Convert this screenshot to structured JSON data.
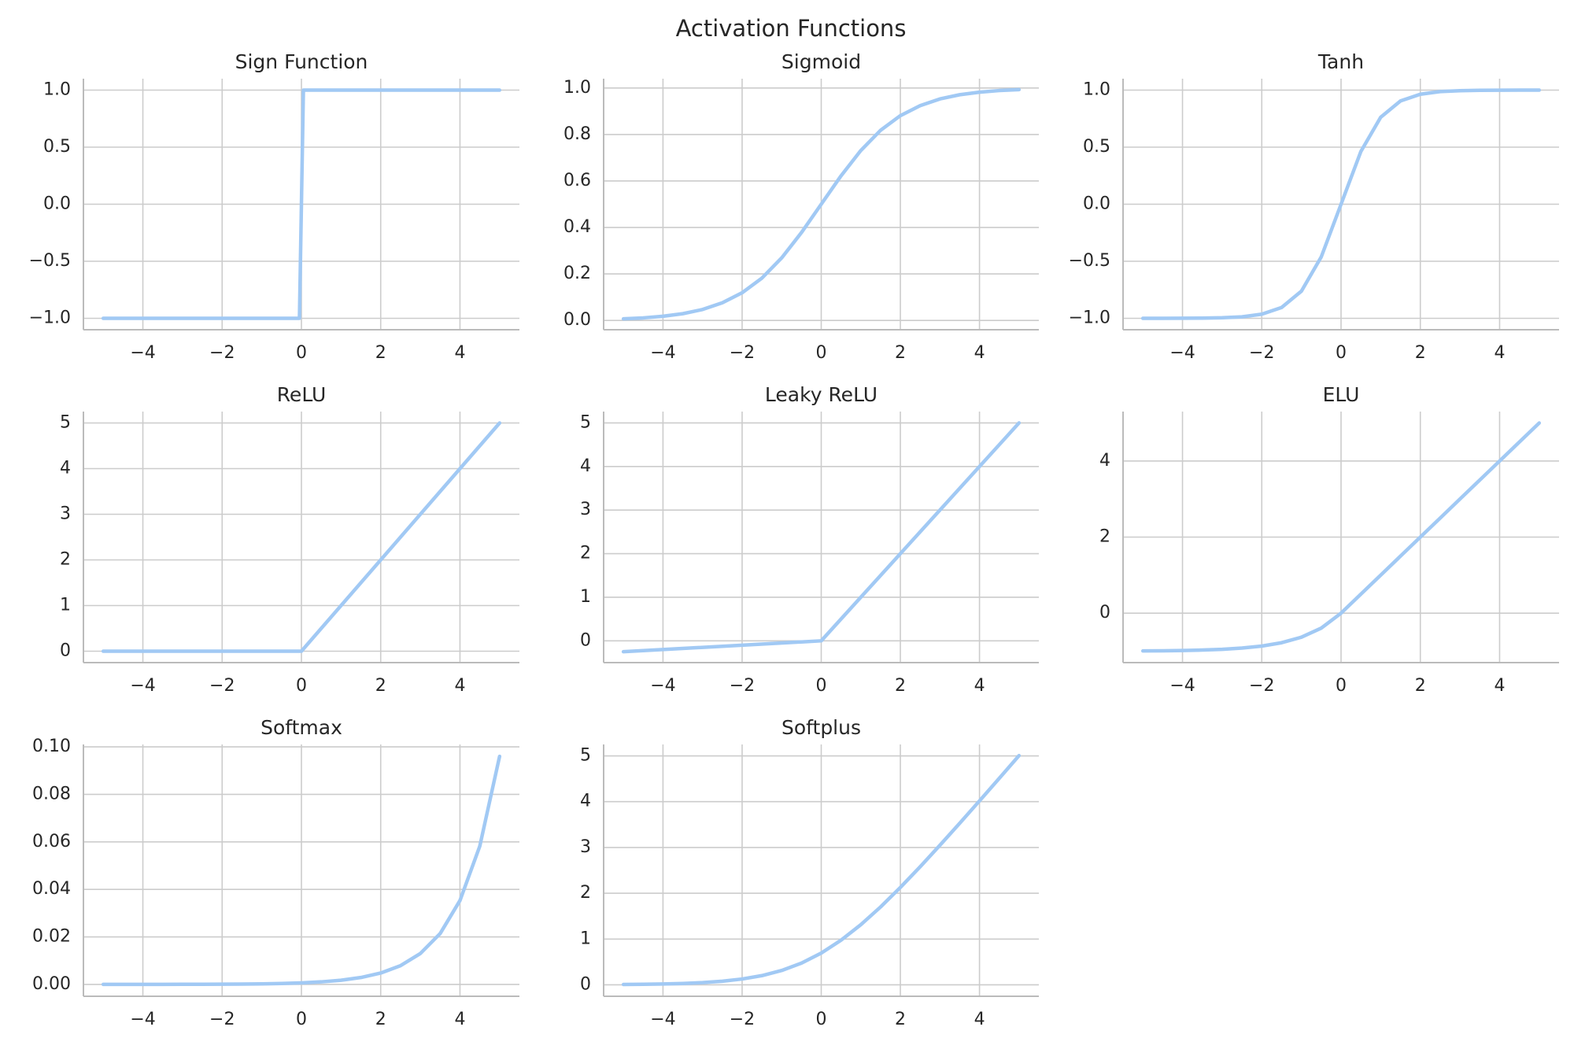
{
  "title": "Activation Functions",
  "chart_data": [
    {
      "type": "line",
      "title": "Sign Function",
      "grid": true,
      "color": "#a1c9f4",
      "x": [
        -5,
        -0.05,
        0.05,
        5
      ],
      "values": [
        -1,
        -1,
        1,
        1
      ],
      "xlim": [
        -5.5,
        5.5
      ],
      "ylim": [
        -1.1,
        1.1
      ],
      "xticks": [
        {
          "value": -4,
          "label": "−4"
        },
        {
          "value": -2,
          "label": "−2"
        },
        0,
        2,
        4
      ],
      "yticks": [
        {
          "value": -1,
          "label": "−1.0"
        },
        {
          "value": -0.5,
          "label": "−0.5"
        },
        {
          "value": 0,
          "label": "0.0"
        },
        0.5,
        {
          "value": 1,
          "label": "1.0"
        }
      ]
    },
    {
      "type": "line",
      "title": "Sigmoid",
      "grid": true,
      "color": "#a1c9f4",
      "x": [
        -5,
        -4.5,
        -4,
        -3.5,
        -3,
        -2.5,
        -2,
        -1.5,
        -1,
        -0.5,
        0,
        0.5,
        1,
        1.5,
        2,
        2.5,
        3,
        3.5,
        4,
        4.5,
        5
      ],
      "values": [
        0.007,
        0.011,
        0.018,
        0.029,
        0.047,
        0.076,
        0.119,
        0.182,
        0.269,
        0.378,
        0.5,
        0.622,
        0.731,
        0.818,
        0.881,
        0.924,
        0.953,
        0.971,
        0.982,
        0.989,
        0.993
      ],
      "xlim": [
        -5.5,
        5.5
      ],
      "ylim": [
        -0.04,
        1.04
      ],
      "xticks": [
        {
          "value": -4,
          "label": "−4"
        },
        {
          "value": -2,
          "label": "−2"
        },
        0,
        2,
        4
      ],
      "yticks": [
        {
          "value": 0,
          "label": "0.0"
        },
        0.2,
        0.4,
        0.6,
        0.8,
        {
          "value": 1,
          "label": "1.0"
        }
      ]
    },
    {
      "type": "line",
      "title": "Tanh",
      "grid": true,
      "color": "#a1c9f4",
      "x": [
        -5,
        -4.5,
        -4,
        -3.5,
        -3,
        -2.5,
        -2,
        -1.5,
        -1,
        -0.5,
        0,
        0.5,
        1,
        1.5,
        2,
        2.5,
        3,
        3.5,
        4,
        4.5,
        5
      ],
      "values": [
        -1,
        -1,
        -0.999,
        -0.998,
        -0.995,
        -0.987,
        -0.964,
        -0.905,
        -0.762,
        -0.462,
        0,
        0.462,
        0.762,
        0.905,
        0.964,
        0.987,
        0.995,
        0.998,
        0.999,
        1,
        1
      ],
      "xlim": [
        -5.5,
        5.5
      ],
      "ylim": [
        -1.1,
        1.1
      ],
      "xticks": [
        {
          "value": -4,
          "label": "−4"
        },
        {
          "value": -2,
          "label": "−2"
        },
        0,
        2,
        4
      ],
      "yticks": [
        {
          "value": -1,
          "label": "−1.0"
        },
        {
          "value": -0.5,
          "label": "−0.5"
        },
        {
          "value": 0,
          "label": "0.0"
        },
        0.5,
        {
          "value": 1,
          "label": "1.0"
        }
      ]
    },
    {
      "type": "line",
      "title": "ReLU",
      "grid": true,
      "color": "#a1c9f4",
      "x": [
        -5,
        0,
        5
      ],
      "values": [
        0,
        0,
        5
      ],
      "xlim": [
        -5.5,
        5.5
      ],
      "ylim": [
        -0.25,
        5.25
      ],
      "xticks": [
        {
          "value": -4,
          "label": "−4"
        },
        {
          "value": -2,
          "label": "−2"
        },
        0,
        2,
        4
      ],
      "yticks": [
        0,
        1,
        2,
        3,
        4,
        5
      ]
    },
    {
      "type": "line",
      "title": "Leaky ReLU",
      "grid": true,
      "color": "#a1c9f4",
      "x": [
        -5,
        0,
        5
      ],
      "values": [
        -0.25,
        0,
        5
      ],
      "xlim": [
        -5.5,
        5.5
      ],
      "ylim": [
        -0.5,
        5.26
      ],
      "xticks": [
        {
          "value": -4,
          "label": "−4"
        },
        {
          "value": -2,
          "label": "−2"
        },
        0,
        2,
        4
      ],
      "yticks": [
        0,
        1,
        2,
        3,
        4,
        5
      ]
    },
    {
      "type": "line",
      "title": "ELU",
      "grid": true,
      "color": "#a1c9f4",
      "x": [
        -5,
        -4.5,
        -4,
        -3.5,
        -3,
        -2.5,
        -2,
        -1.5,
        -1,
        -0.5,
        0,
        0.5,
        1,
        1.5,
        2,
        2.5,
        3,
        3.5,
        4,
        4.5,
        5
      ],
      "values": [
        -0.993,
        -0.989,
        -0.982,
        -0.97,
        -0.95,
        -0.918,
        -0.865,
        -0.777,
        -0.632,
        -0.393,
        0,
        0.5,
        1,
        1.5,
        2,
        2.5,
        3,
        3.5,
        4,
        4.5,
        5
      ],
      "xlim": [
        -5.5,
        5.5
      ],
      "ylim": [
        -1.3,
        5.3
      ],
      "xticks": [
        {
          "value": -4,
          "label": "−4"
        },
        {
          "value": -2,
          "label": "−2"
        },
        0,
        2,
        4
      ],
      "yticks": [
        0,
        2,
        4
      ]
    },
    {
      "type": "line",
      "title": "Softmax",
      "grid": true,
      "color": "#a1c9f4",
      "x": [
        -5,
        -4.5,
        -4,
        -3.5,
        -3,
        -2.5,
        -2,
        -1.5,
        -1,
        -0.5,
        0,
        0.5,
        1,
        1.5,
        2,
        2.5,
        3,
        3.5,
        4,
        4.5,
        5
      ],
      "values": [
        4.4e-06,
        7.2e-06,
        1.18e-05,
        1.95e-05,
        3.22e-05,
        5.31e-05,
        8.75e-05,
        0.000144,
        0.000238,
        0.000392,
        0.000647,
        0.00107,
        0.00176,
        0.0029,
        0.00478,
        0.00788,
        0.013,
        0.0214,
        0.0353,
        0.0582,
        0.096
      ],
      "xlim": [
        -5.5,
        5.5
      ],
      "ylim": [
        -0.005,
        0.101
      ],
      "xticks": [
        {
          "value": -4,
          "label": "−4"
        },
        {
          "value": -2,
          "label": "−2"
        },
        0,
        2,
        4
      ],
      "yticks": [
        {
          "value": 0,
          "label": "0.00"
        },
        0.02,
        0.04,
        0.06,
        0.08,
        {
          "value": 0.1,
          "label": "0.10"
        }
      ]
    },
    {
      "type": "line",
      "title": "Softplus",
      "grid": true,
      "color": "#a1c9f4",
      "x": [
        -5,
        -4.5,
        -4,
        -3.5,
        -3,
        -2.5,
        -2,
        -1.5,
        -1,
        -0.5,
        0,
        0.5,
        1,
        1.5,
        2,
        2.5,
        3,
        3.5,
        4,
        4.5,
        5
      ],
      "values": [
        0.0067,
        0.011,
        0.018,
        0.03,
        0.049,
        0.079,
        0.127,
        0.201,
        0.313,
        0.474,
        0.693,
        0.974,
        1.313,
        1.701,
        2.127,
        2.579,
        3.049,
        3.53,
        4.018,
        4.511,
        5.007
      ],
      "xlim": [
        -5.5,
        5.5
      ],
      "ylim": [
        -0.25,
        5.25
      ],
      "xticks": [
        {
          "value": -4,
          "label": "−4"
        },
        {
          "value": -2,
          "label": "−2"
        },
        0,
        2,
        4
      ],
      "yticks": [
        0,
        1,
        2,
        3,
        4,
        5
      ]
    }
  ]
}
